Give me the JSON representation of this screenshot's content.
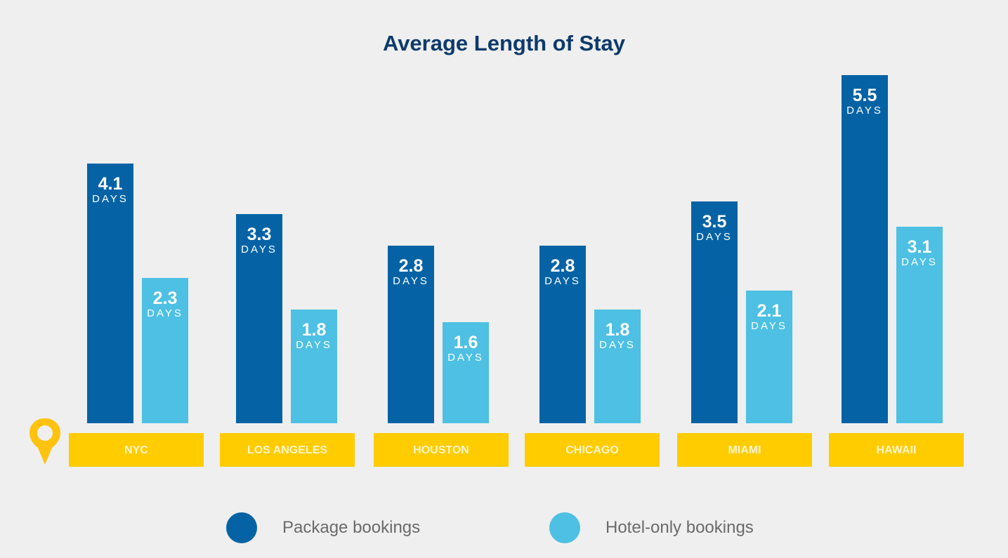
{
  "chart_data": {
    "type": "bar",
    "title": "Average Length of Stay",
    "xlabel": "",
    "ylabel": "",
    "unit": "DAYS",
    "categories": [
      "NYC",
      "LOS ANGELES",
      "HOUSTON",
      "CHICAGO",
      "MIAMI",
      "HAWAII"
    ],
    "series": [
      {
        "name": "Package bookings",
        "color": "#0563a5",
        "values": [
          4.1,
          3.3,
          2.8,
          2.8,
          3.5,
          5.5
        ]
      },
      {
        "name": "Hotel-only bookings",
        "color": "#4dc0e3",
        "values": [
          2.3,
          1.8,
          1.6,
          1.8,
          2.1,
          3.1
        ]
      }
    ],
    "grid": false,
    "legend_position": "bottom",
    "ylim": [
      0,
      5.5
    ]
  },
  "labels": {
    "pkg": [
      "4.1",
      "3.3",
      "2.8",
      "2.8",
      "3.5",
      "5.5"
    ],
    "hotel": [
      "2.3",
      "1.8",
      "1.6",
      "1.8",
      "2.1",
      "3.1"
    ],
    "unit": "DAYS"
  },
  "legend": {
    "package": "Package bookings",
    "hotel": "Hotel-only bookings"
  },
  "icons": {
    "location": "map-pin-icon"
  }
}
